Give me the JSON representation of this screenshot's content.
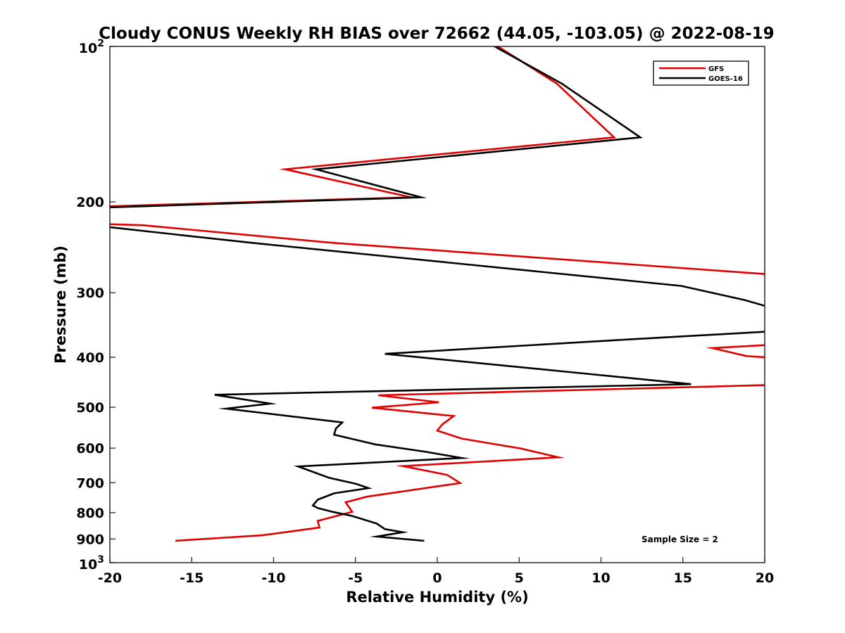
{
  "chart_data": {
    "type": "line",
    "title": "Cloudy CONUS Weekly RH BIAS over 72662 (44.05, -103.05) @ 2022-08-19",
    "xlabel": "Relative Humidity (%)",
    "ylabel": "Pressure (mb)",
    "xlim": [
      -20,
      20
    ],
    "ylim": [
      100,
      1000
    ],
    "y_scale": "log",
    "y_reversed": true,
    "grid": false,
    "legend_position": "top-right",
    "x_ticks": [
      -20,
      -15,
      -10,
      -5,
      0,
      5,
      10,
      15,
      20
    ],
    "x_tick_labels": [
      "-20",
      "-15",
      "-10",
      "-5",
      "0",
      "5",
      "10",
      "15",
      "20"
    ],
    "y_ticks": [
      200,
      300,
      400,
      500,
      600,
      700,
      800,
      900
    ],
    "y_tick_labels": [
      "200",
      "300",
      "400",
      "500",
      "600",
      "700",
      "800",
      "900"
    ],
    "y_decade_ticks": [
      {
        "value": 100,
        "base": "10",
        "exp": "2"
      },
      {
        "value": 1000,
        "base": "10",
        "exp": "3"
      }
    ],
    "annotation": "Sample Size = 2",
    "series": [
      {
        "name": "GFS",
        "color": "#e00000",
        "points": [
          [
            3.7,
            100
          ],
          [
            7.3,
            118
          ],
          [
            10.8,
            150
          ],
          [
            -9.3,
            173
          ],
          [
            -1.6,
            196
          ],
          [
            -20,
            204
          ],
          [
            null,
            218
          ],
          [
            -20,
            221
          ],
          [
            -18,
            222
          ],
          [
            -6.5,
            240
          ],
          [
            20,
            276
          ],
          [
            null,
            360
          ],
          [
            20,
            379
          ],
          [
            16.8,
            384
          ],
          [
            18.9,
            398
          ],
          [
            20,
            400
          ],
          [
            null,
            440
          ],
          [
            20,
            453
          ],
          [
            -3.6,
            474
          ],
          [
            0.1,
            489
          ],
          [
            -4.0,
            501
          ],
          [
            1.0,
            520
          ],
          [
            0.3,
            540
          ],
          [
            0.0,
            555
          ],
          [
            1.5,
            575
          ],
          [
            5.1,
            601
          ],
          [
            7.4,
            625
          ],
          [
            -2.1,
            650
          ],
          [
            0.6,
            676
          ],
          [
            1.4,
            701
          ],
          [
            -4.3,
            745
          ],
          [
            -5.6,
            764
          ],
          [
            -5.4,
            780
          ],
          [
            -5.2,
            797
          ],
          [
            -7.3,
            830
          ],
          [
            -7.2,
            855
          ],
          [
            -10.7,
            885
          ],
          [
            -16.0,
            907
          ]
        ]
      },
      {
        "name": "GOES-16",
        "color": "#000000",
        "points": [
          [
            3.0,
            98
          ],
          [
            7.6,
            118
          ],
          [
            12.4,
            150
          ],
          [
            -7.4,
            173
          ],
          [
            -1.0,
            196
          ],
          [
            -20,
            205
          ],
          [
            null,
            220
          ],
          [
            -20,
            224
          ],
          [
            -11.4,
            240
          ],
          [
            14.9,
            291
          ],
          [
            18.8,
            310
          ],
          [
            20,
            318
          ],
          [
            null,
            340
          ],
          [
            20,
            357
          ],
          [
            10.7,
            371
          ],
          [
            -3.2,
            394
          ],
          [
            8.3,
            428
          ],
          [
            15.5,
            451
          ],
          [
            -13.6,
            473
          ],
          [
            -10.2,
            492
          ],
          [
            -12.9,
            503
          ],
          [
            -5.8,
            535
          ],
          [
            -6.2,
            550
          ],
          [
            -6.3,
            565
          ],
          [
            -3.8,
            590
          ],
          [
            -0.7,
            610
          ],
          [
            1.5,
            627
          ],
          [
            -8.5,
            651
          ],
          [
            -6.6,
            685
          ],
          [
            -5.0,
            703
          ],
          [
            -4.2,
            717
          ],
          [
            -6.3,
            734
          ],
          [
            -7.3,
            755
          ],
          [
            -7.6,
            775
          ],
          [
            -7.3,
            784
          ],
          [
            -6.4,
            797
          ],
          [
            -5.2,
            812
          ],
          [
            -3.7,
            840
          ],
          [
            -3.2,
            861
          ],
          [
            -2.1,
            873
          ],
          [
            -3.7,
            890
          ],
          [
            -0.8,
            907
          ]
        ]
      }
    ]
  }
}
